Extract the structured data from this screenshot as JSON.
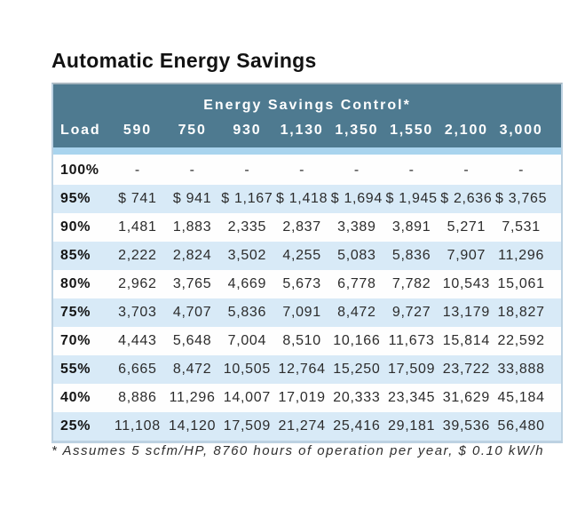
{
  "title": "Automatic Energy Savings",
  "footnote": "* Assumes 5 scfm/HP, 8760 hours of operation per year, $ 0.10 kW/h",
  "colors": {
    "header_bg": "#4e7a90",
    "header_text": "#ffffff",
    "accent_strip": "#a9d4ee",
    "row_alt_bg": "#d8eaf7",
    "row_bg": "#fefefe",
    "table_border": "#bdd2e2"
  },
  "chart_data": {
    "type": "table",
    "title": "Automatic Energy Savings",
    "header": "Energy Savings Control*",
    "columns": [
      "Load",
      "590",
      "750",
      "930",
      "1,130",
      "1,350",
      "1,550",
      "2,100",
      "3,000"
    ],
    "rows": [
      [
        "100%",
        "-",
        "-",
        "-",
        "-",
        "-",
        "-",
        "-",
        "-"
      ],
      [
        "95%",
        "$ 741",
        "$ 941",
        "$ 1,167",
        "$ 1,418",
        "$ 1,694",
        "$ 1,945",
        "$ 2,636",
        "$ 3,765"
      ],
      [
        "90%",
        "1,481",
        "1,883",
        "2,335",
        "2,837",
        "3,389",
        "3,891",
        "5,271",
        "7,531"
      ],
      [
        "85%",
        "2,222",
        "2,824",
        "3,502",
        "4,255",
        "5,083",
        "5,836",
        "7,907",
        "11,296"
      ],
      [
        "80%",
        "2,962",
        "3,765",
        "4,669",
        "5,673",
        "6,778",
        "7,782",
        "10,543",
        "15,061"
      ],
      [
        "75%",
        "3,703",
        "4,707",
        "5,836",
        "7,091",
        "8,472",
        "9,727",
        "13,179",
        "18,827"
      ],
      [
        "70%",
        "4,443",
        "5,648",
        "7,004",
        "8,510",
        "10,166",
        "11,673",
        "15,814",
        "22,592"
      ],
      [
        "55%",
        "6,665",
        "8,472",
        "10,505",
        "12,764",
        "15,250",
        "17,509",
        "23,722",
        "33,888"
      ],
      [
        "40%",
        "8,886",
        "11,296",
        "14,007",
        "17,019",
        "20,333",
        "23,345",
        "31,629",
        "45,184"
      ],
      [
        "25%",
        "11,108",
        "14,120",
        "17,509",
        "21,274",
        "25,416",
        "29,181",
        "39,536",
        "56,480"
      ]
    ],
    "footnote": "* Assumes 5 scfm/HP, 8760 hours of operation per year, $ 0.10 kW/h"
  }
}
